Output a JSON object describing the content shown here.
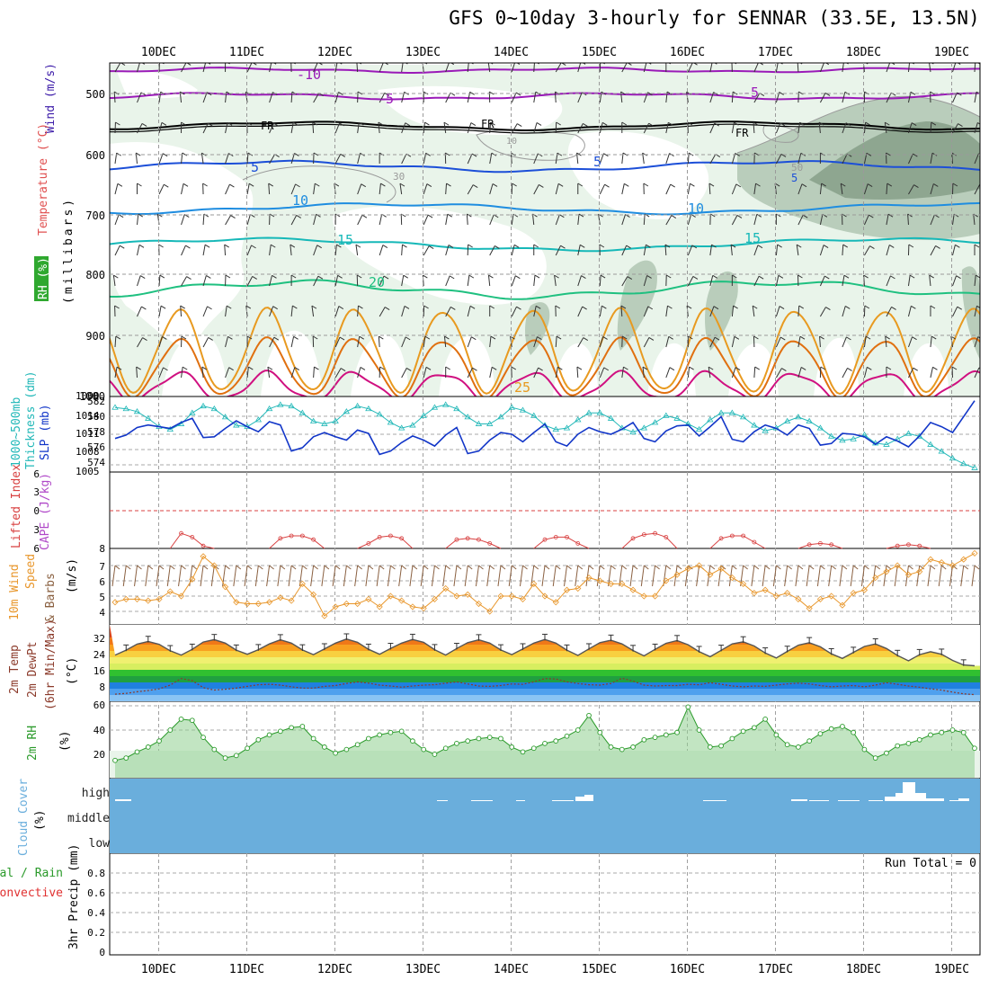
{
  "title": "GFS 0~10day 3-hourly for SENNAR (33.5E, 13.5N)",
  "dates": [
    "10DEC",
    "11DEC",
    "12DEC",
    "13DEC",
    "14DEC",
    "15DEC",
    "16DEC",
    "17DEC",
    "18DEC",
    "19DEC"
  ],
  "colors": {
    "temp_minus10": "#9a1ab8",
    "temp_minus5": "#9a1ab8",
    "freezing": "#000000",
    "temp_5": "#1c4fd8",
    "temp_10": "#1f8de0",
    "temp_15": "#16b8b8",
    "temp_20": "#1fc080",
    "temp_25": "#e89a20",
    "temp_30": "#e07010",
    "temp_35": "#d01080",
    "thickness": "#1236c8",
    "slp": "#22b8b8",
    "lifted": "#d84040",
    "wind": "#e8962a",
    "rh": "#2a9a2a",
    "cloud": "#6aaedc",
    "grid": "#a0a0a0"
  },
  "panels": {
    "upper": {
      "ylabel_wind": "Wind (m/s)",
      "ylabel_temp": "Temperature (°C)",
      "ylabel_rh": "RH (%)",
      "ylabel_mb": "(millibars)",
      "ticks": [
        "500",
        "600",
        "700",
        "800",
        "900",
        "1000"
      ],
      "contour_labels": [
        "-10",
        "-5",
        "FR",
        "5",
        "10",
        "15",
        "20",
        "25",
        "FR",
        "FR",
        "5",
        "10",
        "15",
        "-5",
        "10",
        "30",
        "50",
        "5"
      ]
    },
    "thickness": {
      "ylabel_a": "1000~500mb",
      "ylabel_b": "Thickness (dm)",
      "ylabel_slp": "SLP (mb)",
      "left_ticks": [
        "582",
        "580",
        "578",
        "576",
        "574"
      ],
      "right_ticks": [
        "1014",
        "1011",
        "1008",
        "1005"
      ],
      "top_tick": "1000"
    },
    "lifted": {
      "ylabel_li": "Lifted Index",
      "ylabel_cape": "CAPE (J/kg)",
      "ticks": [
        "6",
        "3",
        "0",
        "3",
        "6"
      ],
      "right_tick": "8"
    },
    "wind10": {
      "ylabel_a": "10m Wind",
      "ylabel_b": "Speed",
      "ylabel_c": "& Barbs",
      "ylabel_d": "(m/s)",
      "ticks": [
        "7",
        "6",
        "5",
        "4"
      ]
    },
    "temp2m": {
      "ylabel_a": "2m Temp",
      "ylabel_b": "2m DewPt",
      "ylabel_c": "(6hr Min/Max)",
      "ylabel_d": "(°C)",
      "ticks": [
        "32",
        "24",
        "16",
        "8"
      ]
    },
    "rh2m": {
      "ylabel_a": "2m RH",
      "ylabel_b": "(%)",
      "ticks": [
        "60",
        "40",
        "20"
      ]
    },
    "cloud": {
      "ylabel_a": "Cloud Cover",
      "ylabel_b": "(%)",
      "levels": [
        "high",
        "middle",
        "low"
      ]
    },
    "precip": {
      "ylabel_a": "3hr Precip (mm)",
      "ylabel_total": "Total / Rain",
      "ylabel_conv": "Convective",
      "ticks": [
        "0.8",
        "0.6",
        "0.4",
        "0.2",
        "0"
      ],
      "run_total": "Run Total = 0"
    }
  },
  "chart_data": {
    "type": "line",
    "x": [
      "09DEC 12Z",
      "09DEC 15Z",
      "09DEC 18Z",
      "09DEC 21Z",
      "10DEC 00Z",
      "10DEC 03Z",
      "10DEC 06Z",
      "10DEC 09Z",
      "10DEC 12Z",
      "10DEC 15Z",
      "10DEC 18Z",
      "10DEC 21Z",
      "11DEC 00Z",
      "11DEC 03Z",
      "11DEC 06Z",
      "11DEC 09Z",
      "11DEC 12Z",
      "11DEC 15Z",
      "11DEC 18Z",
      "11DEC 21Z",
      "12DEC 00Z",
      "12DEC 03Z",
      "12DEC 06Z",
      "12DEC 09Z",
      "12DEC 12Z",
      "12DEC 15Z",
      "12DEC 18Z",
      "12DEC 21Z",
      "13DEC 00Z",
      "13DEC 03Z",
      "13DEC 06Z",
      "13DEC 09Z",
      "13DEC 12Z",
      "13DEC 15Z",
      "13DEC 18Z",
      "13DEC 21Z",
      "14DEC 00Z",
      "14DEC 03Z",
      "14DEC 06Z",
      "14DEC 09Z",
      "14DEC 12Z",
      "14DEC 15Z",
      "14DEC 18Z",
      "14DEC 21Z",
      "15DEC 00Z",
      "15DEC 03Z",
      "15DEC 06Z",
      "15DEC 09Z",
      "15DEC 12Z",
      "15DEC 15Z",
      "15DEC 18Z",
      "15DEC 21Z",
      "16DEC 00Z",
      "16DEC 03Z",
      "16DEC 06Z",
      "16DEC 09Z",
      "16DEC 12Z",
      "16DEC 15Z",
      "16DEC 18Z",
      "16DEC 21Z",
      "17DEC 00Z",
      "17DEC 03Z",
      "17DEC 06Z",
      "17DEC 09Z",
      "17DEC 12Z",
      "17DEC 15Z",
      "17DEC 18Z",
      "17DEC 21Z",
      "18DEC 00Z",
      "18DEC 03Z",
      "18DEC 06Z",
      "18DEC 09Z",
      "18DEC 12Z",
      "18DEC 15Z",
      "18DEC 18Z",
      "18DEC 21Z",
      "19DEC 00Z",
      "19DEC 03Z",
      "19DEC 06Z"
    ],
    "series": [
      {
        "name": "Thickness (dm)",
        "values": [
          577.0,
          577.4,
          578.3,
          578.6,
          578.4,
          578.2,
          578.9,
          579.4,
          577.1,
          577.2,
          578.2,
          579.1,
          578.4,
          577.8,
          579.0,
          578.6,
          575.5,
          575.9,
          577.2,
          577.7,
          577.2,
          576.8,
          578.0,
          577.6,
          575.1,
          575.5,
          576.5,
          577.3,
          576.8,
          576.1,
          577.4,
          578.3,
          575.2,
          575.5,
          576.8,
          577.7,
          577.5,
          576.6,
          577.7,
          578.7,
          576.6,
          576.1,
          577.5,
          578.3,
          577.8,
          577.5,
          578.1,
          578.9,
          577.0,
          576.6,
          577.9,
          578.5,
          578.6,
          577.3,
          578.4,
          579.6,
          576.9,
          576.6,
          577.8,
          578.6,
          578.2,
          577.4,
          578.6,
          578.2,
          576.2,
          576.4,
          577.6,
          577.5,
          577.2,
          576.3,
          577.2,
          576.7,
          576.0,
          577.3,
          578.9,
          578.4,
          577.7,
          579.6,
          581.5
        ]
      },
      {
        "name": "SLP (mb)",
        "values": [
          1014.4,
          1014.2,
          1013.8,
          1012.8,
          1011.6,
          1011.2,
          1012.0,
          1013.6,
          1014.6,
          1014.2,
          1013.0,
          1011.8,
          1011.6,
          1012.6,
          1014.2,
          1014.8,
          1014.6,
          1013.6,
          1012.4,
          1012.0,
          1012.4,
          1013.8,
          1014.6,
          1014.2,
          1013.4,
          1012.2,
          1011.4,
          1011.8,
          1013.2,
          1014.4,
          1014.8,
          1014.2,
          1013.0,
          1012.0,
          1012.0,
          1013.0,
          1014.4,
          1014.0,
          1013.2,
          1011.8,
          1011.2,
          1011.4,
          1012.6,
          1013.6,
          1013.6,
          1012.8,
          1011.4,
          1010.8,
          1011.4,
          1012.2,
          1013.2,
          1012.8,
          1012.0,
          1011.2,
          1012.6,
          1013.6,
          1013.6,
          1013.0,
          1011.8,
          1011.0,
          1011.4,
          1012.4,
          1013.0,
          1012.4,
          1011.4,
          1010.2,
          1009.6,
          1009.8,
          1010.4,
          1009.2,
          1009.0,
          1009.8,
          1010.6,
          1010.2,
          1009.0,
          1008.0,
          1007.0,
          1006.2,
          1005.6
        ]
      },
      {
        "name": "Lifted Index",
        "values": [
          6,
          6,
          6,
          6,
          6,
          6,
          3.6,
          4.2,
          5.6,
          6,
          6,
          6,
          6,
          6,
          6,
          4.4,
          4.0,
          4.0,
          4.6,
          6,
          6,
          6,
          6,
          5.2,
          4.2,
          4.0,
          4.4,
          6,
          6,
          6,
          6,
          4.6,
          4.4,
          4.6,
          5.2,
          6,
          6,
          6,
          6,
          4.6,
          4.2,
          4.2,
          5.2,
          6,
          6,
          6,
          6,
          4.4,
          3.8,
          3.6,
          4.2,
          6,
          6,
          6,
          6,
          4.4,
          4.0,
          4.0,
          5.0,
          6,
          6,
          6,
          6,
          5.4,
          5.2,
          5.4,
          6,
          6,
          6,
          6,
          6,
          5.6,
          5.4,
          5.6,
          6,
          6,
          6,
          6,
          6
        ]
      },
      {
        "name": "10m Wind Speed",
        "values": [
          4.6,
          4.8,
          4.8,
          4.7,
          4.8,
          5.3,
          5.0,
          6.1,
          7.6,
          7.0,
          5.6,
          4.6,
          4.5,
          4.5,
          4.6,
          4.9,
          4.7,
          5.8,
          5.1,
          3.7,
          4.3,
          4.5,
          4.5,
          4.8,
          4.3,
          5.0,
          4.7,
          4.3,
          4.2,
          4.8,
          5.5,
          5.0,
          5.1,
          4.5,
          4.0,
          5.0,
          5.0,
          4.8,
          5.8,
          5.0,
          4.6,
          5.4,
          5.5,
          6.2,
          6.0,
          5.8,
          5.8,
          5.4,
          5.0,
          5.0,
          6.0,
          6.4,
          6.8,
          7.0,
          6.4,
          6.8,
          6.2,
          5.8,
          5.2,
          5.4,
          5.0,
          5.2,
          4.8,
          4.2,
          4.8,
          5.0,
          4.4,
          5.2,
          5.4,
          6.2,
          6.6,
          7.0,
          6.4,
          6.6,
          7.4,
          7.2,
          7.0,
          7.4,
          7.8
        ]
      },
      {
        "name": "2m Temp",
        "values": [
          25.2,
          27.6,
          30.5,
          31.8,
          30.4,
          27.3,
          25.2,
          28.0,
          31.5,
          32.7,
          31.0,
          27.6,
          25.6,
          27.8,
          30.6,
          32.6,
          31.0,
          27.7,
          25.4,
          28.2,
          31.0,
          33.0,
          31.4,
          28.0,
          25.6,
          28.4,
          31.0,
          32.8,
          31.4,
          27.8,
          25.2,
          28.4,
          31.2,
          32.6,
          31.0,
          27.7,
          25.4,
          28.2,
          31.0,
          32.8,
          31.0,
          27.6,
          25.0,
          28.2,
          31.2,
          32.4,
          30.6,
          27.4,
          24.8,
          28.0,
          30.9,
          32.2,
          30.2,
          26.9,
          24.4,
          27.5,
          30.6,
          31.6,
          29.6,
          26.2,
          23.8,
          27.0,
          30.0,
          31.2,
          29.2,
          25.8,
          23.6,
          26.5,
          29.4,
          30.6,
          28.4,
          25.0,
          22.4,
          25.4,
          26.8,
          25.6,
          22.6,
          20.4,
          20.0
        ]
      },
      {
        "name": "2m DewPt",
        "values": [
          6.2,
          6.6,
          7.4,
          8.0,
          8.8,
          10.6,
          13.8,
          12.8,
          9.4,
          8.2,
          8.6,
          9.2,
          10.0,
          10.8,
          11.0,
          10.6,
          9.8,
          9.2,
          9.2,
          10.0,
          10.4,
          11.4,
          12.2,
          11.6,
          10.6,
          10.2,
          9.6,
          10.2,
          10.6,
          10.8,
          11.6,
          12.2,
          11.2,
          10.2,
          10.0,
          10.4,
          11.2,
          11.0,
          12.2,
          13.8,
          13.6,
          12.2,
          11.4,
          10.8,
          10.6,
          11.4,
          14.0,
          12.6,
          10.6,
          10.2,
          10.4,
          10.4,
          11.0,
          10.8,
          11.8,
          11.0,
          10.2,
          9.8,
          10.2,
          10.0,
          10.6,
          11.2,
          11.6,
          11.2,
          10.4,
          9.8,
          10.2,
          10.4,
          9.8,
          10.6,
          11.8,
          11.0,
          10.2,
          9.6,
          8.8,
          8.2,
          7.2,
          6.4,
          6.0
        ]
      },
      {
        "name": "2m RH",
        "values": [
          15,
          17,
          22,
          26,
          31,
          40,
          49,
          48,
          34,
          24,
          17,
          19,
          25,
          32,
          36,
          39,
          42,
          43,
          33,
          26,
          21,
          24,
          28,
          33,
          36,
          38,
          39,
          31,
          24,
          20,
          25,
          29,
          31,
          33,
          34,
          33,
          26,
          22,
          25,
          29,
          31,
          35,
          40,
          52,
          38,
          26,
          24,
          26,
          32,
          34,
          36,
          38,
          59,
          40,
          26,
          27,
          33,
          39,
          42,
          49,
          36,
          28,
          26,
          31,
          37,
          41,
          43,
          38,
          24,
          17,
          21,
          27,
          29,
          32,
          36,
          38,
          40,
          38,
          25
        ]
      }
    ],
    "xlabel": "",
    "ylim_rh": [
      10,
      60
    ],
    "ylim_thickness": [
      573,
      582
    ],
    "ylim_slp": [
      1005,
      1016
    ]
  }
}
